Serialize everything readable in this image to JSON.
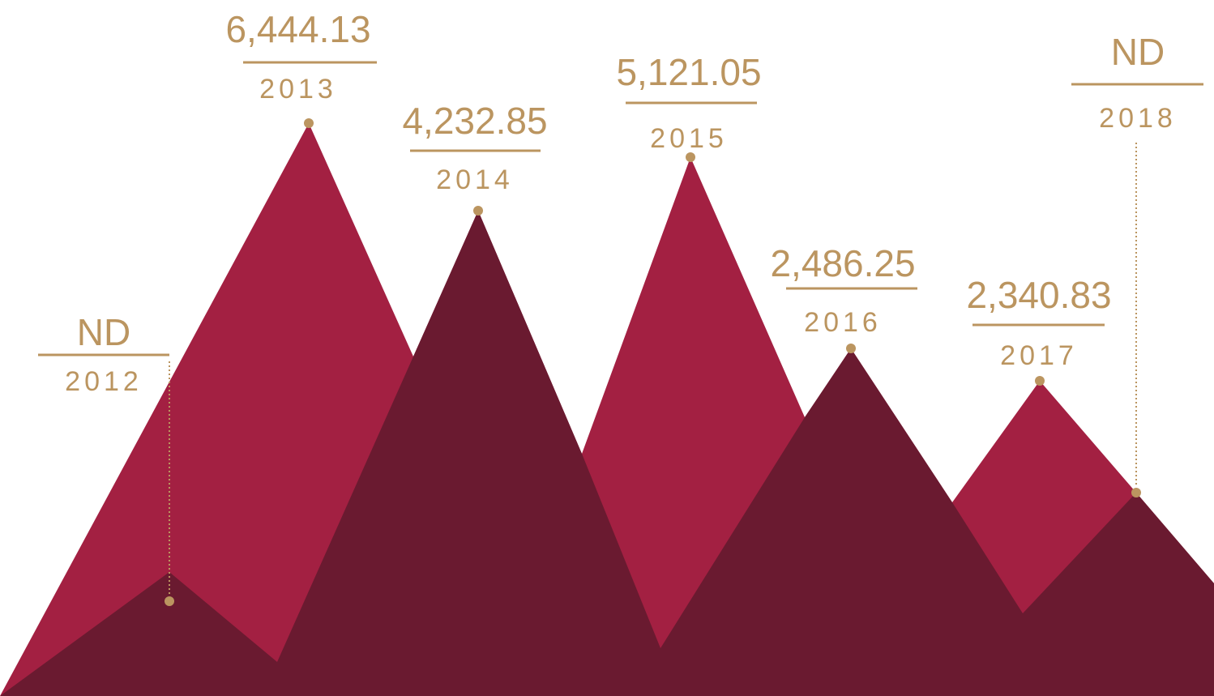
{
  "chart_data": {
    "type": "area",
    "categories": [
      "2012",
      "2013",
      "2014",
      "2015",
      "2016",
      "2017",
      "2018"
    ],
    "values": [
      null,
      6444.13,
      4232.85,
      5121.05,
      2486.25,
      2340.83,
      null
    ],
    "labels": [
      "ND",
      "6,444.13",
      "4,232.85",
      "5,121.05",
      "2,486.25",
      "2,340.83",
      "ND"
    ],
    "xlabel": "",
    "ylabel": "",
    "legend": "none",
    "grid": false,
    "colors": {
      "front_area": "#a32042",
      "back_area": "#6a1a30",
      "accent": "#bb9560",
      "background": "#ffffff"
    }
  }
}
